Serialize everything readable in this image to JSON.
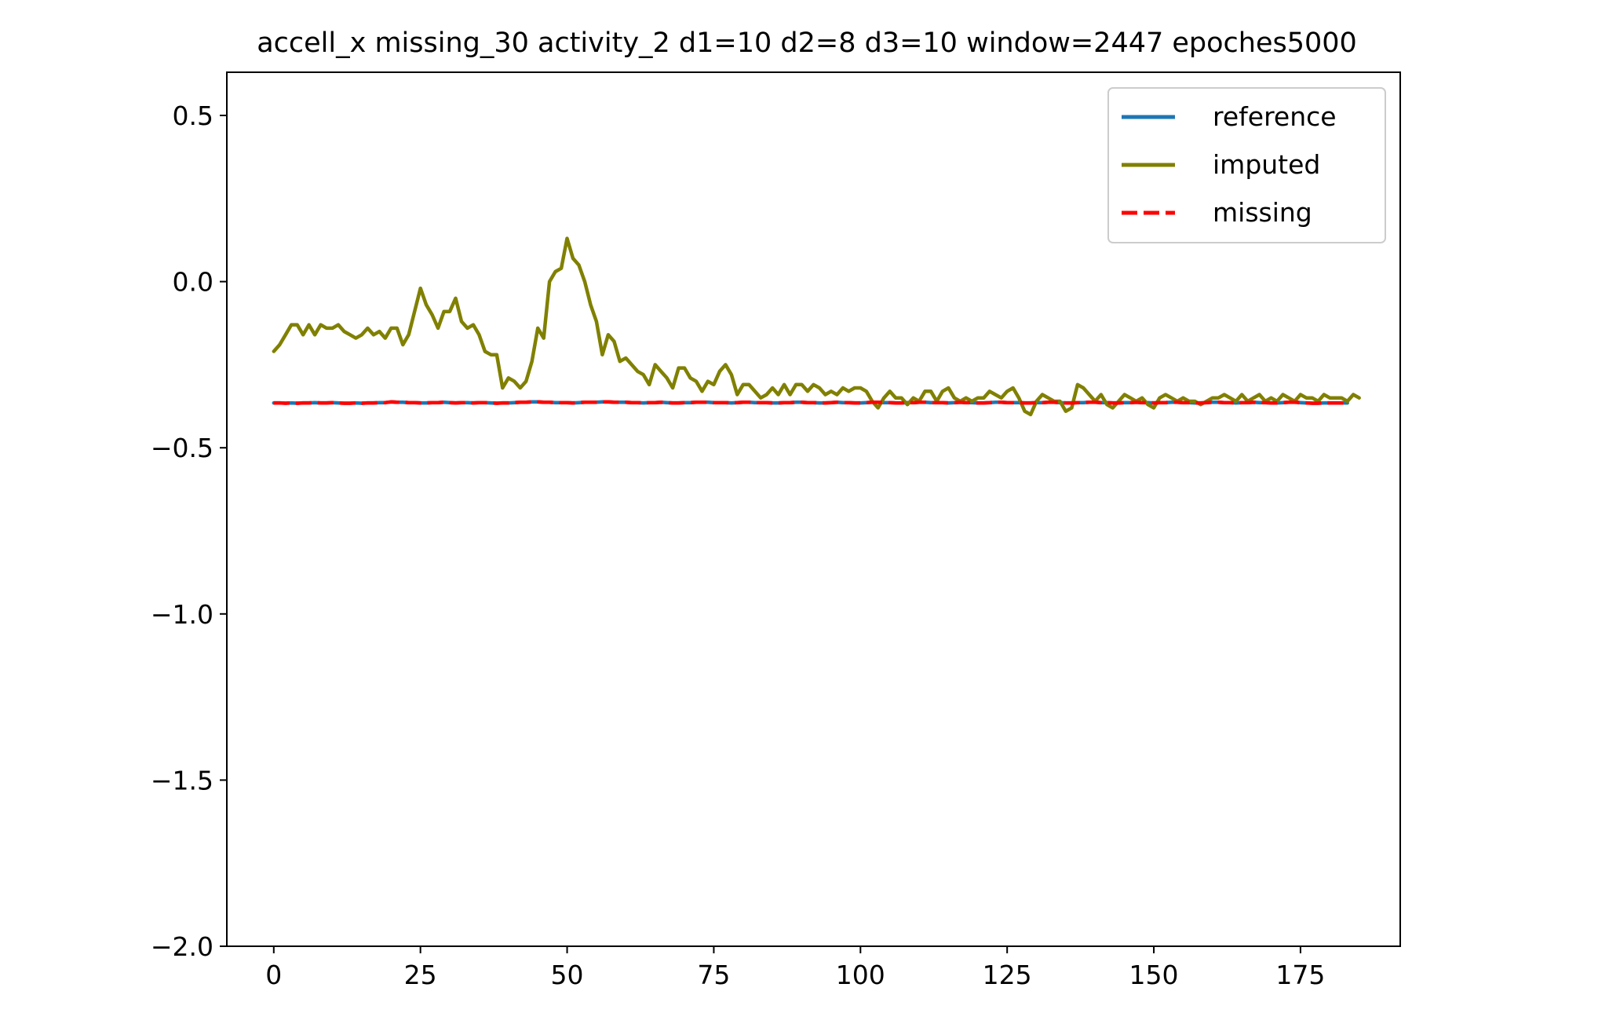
{
  "chart_data": {
    "type": "line",
    "title": "accell_x missing_30 activity_2 d1=10 d2=8 d3=10 window=2447 epoches5000",
    "xlabel": "",
    "ylabel": "",
    "xlim": [
      -8,
      192
    ],
    "ylim": [
      -2.0,
      0.63
    ],
    "xticks": [
      0,
      25,
      50,
      75,
      100,
      125,
      150,
      175
    ],
    "xtick_labels": [
      "0",
      "25",
      "50",
      "75",
      "100",
      "125",
      "150",
      "175"
    ],
    "yticks": [
      0.5,
      0.0,
      -0.5,
      -1.0,
      -1.5,
      -2.0
    ],
    "ytick_labels": [
      "0.5",
      "0.0",
      "−0.5",
      "−1.0",
      "−1.5",
      "−2.0"
    ],
    "grid": false,
    "legend_position": "top-right",
    "series": [
      {
        "name": "reference",
        "color": "#1f77b4",
        "style": "solid",
        "x_start": 0,
        "values": [
          -0.365,
          -0.365,
          -0.366,
          -0.365,
          -0.366,
          -0.365,
          -0.365,
          -0.364,
          -0.365,
          -0.365,
          -0.364,
          -0.365,
          -0.366,
          -0.366,
          -0.365,
          -0.366,
          -0.365,
          -0.365,
          -0.364,
          -0.364,
          -0.362,
          -0.363,
          -0.363,
          -0.364,
          -0.364,
          -0.365,
          -0.365,
          -0.364,
          -0.364,
          -0.363,
          -0.364,
          -0.365,
          -0.364,
          -0.364,
          -0.365,
          -0.364,
          -0.364,
          -0.365,
          -0.366,
          -0.365,
          -0.365,
          -0.364,
          -0.363,
          -0.363,
          -0.362,
          -0.362,
          -0.363,
          -0.363,
          -0.364,
          -0.364,
          -0.364,
          -0.365,
          -0.364,
          -0.363,
          -0.363,
          -0.363,
          -0.362,
          -0.362,
          -0.363,
          -0.363,
          -0.363,
          -0.364,
          -0.364,
          -0.365,
          -0.364,
          -0.364,
          -0.363,
          -0.364,
          -0.365,
          -0.365,
          -0.364,
          -0.364,
          -0.363,
          -0.363,
          -0.363,
          -0.364,
          -0.364,
          -0.364,
          -0.365,
          -0.364,
          -0.363,
          -0.363,
          -0.364,
          -0.364,
          -0.364,
          -0.365,
          -0.365,
          -0.364,
          -0.364,
          -0.363,
          -0.363,
          -0.364,
          -0.364,
          -0.365,
          -0.365,
          -0.364,
          -0.363,
          -0.364,
          -0.364,
          -0.365,
          -0.365,
          -0.364,
          -0.363,
          -0.363,
          -0.364,
          -0.364,
          -0.365,
          -0.365,
          -0.364,
          -0.364,
          -0.363,
          -0.363,
          -0.364,
          -0.364,
          -0.364,
          -0.365,
          -0.364,
          -0.363,
          -0.364,
          -0.364,
          -0.365,
          -0.365,
          -0.364,
          -0.363,
          -0.363,
          -0.364,
          -0.364,
          -0.364,
          -0.365,
          -0.365,
          -0.364,
          -0.364,
          -0.363,
          -0.363,
          -0.364,
          -0.365,
          -0.365,
          -0.364,
          -0.364,
          -0.363,
          -0.363,
          -0.364,
          -0.364,
          -0.365,
          -0.365,
          -0.364,
          -0.364,
          -0.363,
          -0.364,
          -0.364,
          -0.365,
          -0.364,
          -0.364,
          -0.363,
          -0.363,
          -0.364,
          -0.364,
          -0.365,
          -0.365,
          -0.364,
          -0.363,
          -0.363,
          -0.364,
          -0.364,
          -0.365,
          -0.364,
          -0.364,
          -0.363,
          -0.364,
          -0.364,
          -0.365,
          -0.365,
          -0.364,
          -0.363,
          -0.363,
          -0.364,
          -0.365,
          -0.366,
          -0.366,
          -0.365,
          -0.365,
          -0.365,
          -0.365,
          -0.365
        ]
      },
      {
        "name": "imputed",
        "color": "#808000",
        "style": "solid",
        "x_start": 0,
        "values": [
          -0.21,
          -0.19,
          -0.16,
          -0.13,
          -0.13,
          -0.16,
          -0.13,
          -0.16,
          -0.13,
          -0.14,
          -0.14,
          -0.13,
          -0.15,
          -0.16,
          -0.17,
          -0.16,
          -0.14,
          -0.16,
          -0.15,
          -0.17,
          -0.14,
          -0.14,
          -0.19,
          -0.16,
          -0.09,
          -0.02,
          -0.07,
          -0.1,
          -0.14,
          -0.09,
          -0.09,
          -0.05,
          -0.12,
          -0.14,
          -0.13,
          -0.16,
          -0.21,
          -0.22,
          -0.22,
          -0.32,
          -0.29,
          -0.3,
          -0.32,
          -0.3,
          -0.24,
          -0.14,
          -0.17,
          0.0,
          0.03,
          0.04,
          0.13,
          0.07,
          0.05,
          0.0,
          -0.07,
          -0.12,
          -0.22,
          -0.16,
          -0.18,
          -0.24,
          -0.23,
          -0.25,
          -0.27,
          -0.28,
          -0.31,
          -0.25,
          -0.27,
          -0.29,
          -0.32,
          -0.26,
          -0.26,
          -0.29,
          -0.3,
          -0.33,
          -0.3,
          -0.31,
          -0.27,
          -0.25,
          -0.28,
          -0.34,
          -0.31,
          -0.31,
          -0.33,
          -0.35,
          -0.34,
          -0.32,
          -0.34,
          -0.31,
          -0.34,
          -0.31,
          -0.31,
          -0.33,
          -0.31,
          -0.32,
          -0.34,
          -0.33,
          -0.34,
          -0.32,
          -0.33,
          -0.32,
          -0.32,
          -0.33,
          -0.36,
          -0.38,
          -0.35,
          -0.33,
          -0.35,
          -0.35,
          -0.37,
          -0.35,
          -0.36,
          -0.33,
          -0.33,
          -0.36,
          -0.33,
          -0.32,
          -0.35,
          -0.36,
          -0.35,
          -0.36,
          -0.35,
          -0.35,
          -0.33,
          -0.34,
          -0.35,
          -0.33,
          -0.32,
          -0.35,
          -0.39,
          -0.4,
          -0.36,
          -0.34,
          -0.35,
          -0.36,
          -0.36,
          -0.39,
          -0.38,
          -0.31,
          -0.32,
          -0.34,
          -0.36,
          -0.34,
          -0.37,
          -0.38,
          -0.36,
          -0.34,
          -0.35,
          -0.36,
          -0.35,
          -0.37,
          -0.38,
          -0.35,
          -0.34,
          -0.35,
          -0.36,
          -0.35,
          -0.36,
          -0.36,
          -0.37,
          -0.36,
          -0.35,
          -0.35,
          -0.34,
          -0.35,
          -0.36,
          -0.34,
          -0.36,
          -0.35,
          -0.34,
          -0.36,
          -0.35,
          -0.36,
          -0.34,
          -0.35,
          -0.36,
          -0.34,
          -0.35,
          -0.35,
          -0.36,
          -0.34,
          -0.35,
          -0.35,
          -0.35,
          -0.36,
          -0.34,
          -0.35
        ]
      },
      {
        "name": "missing",
        "color": "#ff0000",
        "style": "dashed",
        "x_start": 0,
        "values": [
          -0.365,
          -0.365,
          -0.366,
          -0.365,
          -0.366,
          -0.365,
          -0.365,
          -0.364,
          -0.365,
          -0.365,
          -0.364,
          -0.365,
          -0.366,
          -0.366,
          -0.365,
          -0.366,
          -0.365,
          -0.365,
          -0.364,
          -0.364,
          -0.362,
          -0.363,
          -0.363,
          -0.364,
          -0.364,
          -0.365,
          -0.365,
          -0.364,
          -0.364,
          -0.363,
          -0.364,
          -0.365,
          -0.364,
          -0.364,
          -0.365,
          -0.364,
          -0.364,
          -0.365,
          -0.366,
          -0.365,
          -0.365,
          -0.364,
          -0.363,
          -0.363,
          -0.362,
          -0.362,
          -0.363,
          -0.363,
          -0.364,
          -0.364,
          -0.364,
          -0.365,
          -0.364,
          -0.363,
          -0.363,
          -0.363,
          -0.362,
          -0.362,
          -0.363,
          -0.363,
          -0.363,
          -0.364,
          -0.364,
          -0.365,
          -0.364,
          -0.364,
          -0.363,
          -0.364,
          -0.365,
          -0.365,
          -0.364,
          -0.364,
          -0.363,
          -0.363,
          -0.363,
          -0.364,
          -0.364,
          -0.364,
          -0.365,
          -0.364,
          -0.363,
          -0.363,
          -0.364,
          -0.364,
          -0.364,
          -0.365,
          -0.365,
          -0.364,
          -0.364,
          -0.363,
          -0.363,
          -0.364,
          -0.364,
          -0.365,
          -0.365,
          -0.364,
          -0.363,
          -0.364,
          -0.364,
          -0.365,
          -0.365,
          -0.364,
          -0.363,
          -0.363,
          -0.364,
          -0.364,
          -0.365,
          -0.365,
          -0.364,
          -0.364,
          -0.363,
          -0.363,
          -0.364,
          -0.364,
          -0.364,
          -0.365,
          -0.364,
          -0.363,
          -0.364,
          -0.364,
          -0.365,
          -0.365,
          -0.364,
          -0.363,
          -0.363,
          -0.364,
          -0.364,
          -0.364,
          -0.365,
          -0.365,
          -0.364,
          -0.364,
          -0.363,
          -0.363,
          -0.364,
          -0.365,
          -0.365,
          -0.364,
          -0.364,
          -0.363,
          -0.363,
          -0.364,
          -0.364,
          -0.365,
          -0.365,
          -0.364,
          -0.364,
          -0.363,
          -0.364,
          -0.364,
          -0.365,
          -0.364,
          -0.364,
          -0.363,
          -0.363,
          -0.364,
          -0.364,
          -0.365,
          -0.365,
          -0.364,
          -0.363,
          -0.363,
          -0.364,
          -0.364,
          -0.365,
          -0.364,
          -0.364,
          -0.363,
          -0.364,
          -0.364,
          -0.365,
          -0.365,
          -0.364,
          -0.363,
          -0.363,
          -0.364,
          -0.365,
          -0.366,
          -0.366,
          -0.365,
          -0.365,
          -0.365,
          -0.365,
          -0.365
        ]
      }
    ]
  }
}
